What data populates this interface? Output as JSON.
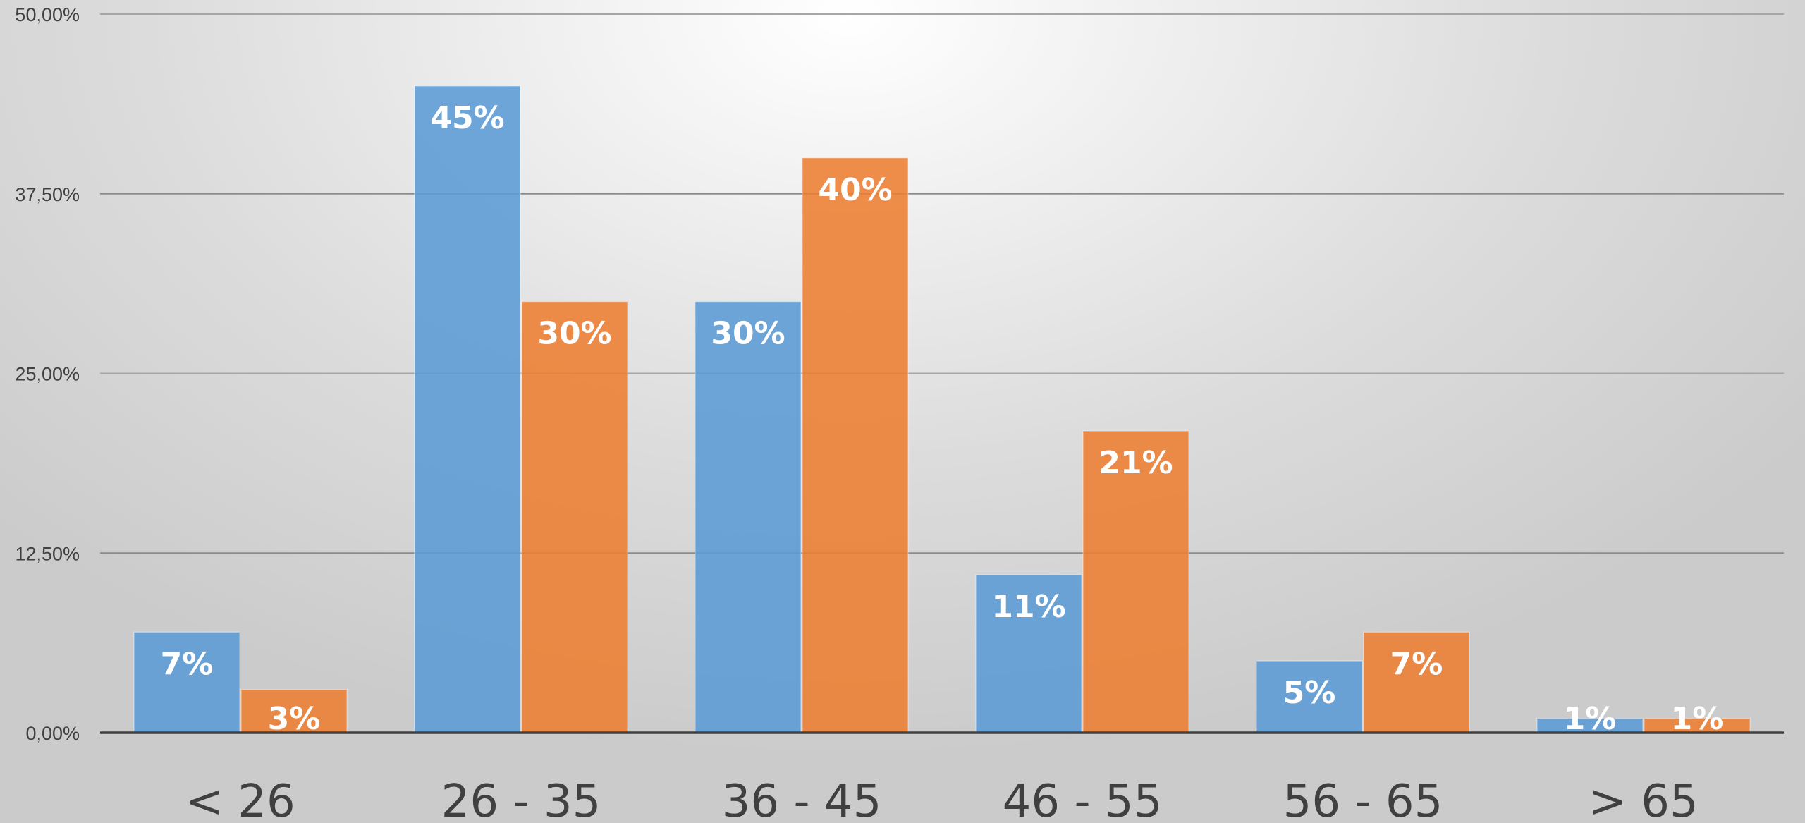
{
  "chart_data": {
    "type": "bar",
    "title": "",
    "xlabel": "",
    "ylabel": "",
    "categories": [
      "< 26",
      "26 - 35",
      "36  - 45",
      "46 - 55",
      "56 - 65",
      "> 65"
    ],
    "series": [
      {
        "color": "#5B9BD5",
        "values": [
          7,
          45,
          30,
          11,
          5,
          1
        ],
        "labels": [
          "7%",
          "45%",
          "30%",
          "11%",
          "5%",
          "1%"
        ]
      },
      {
        "color": "#ED7D31",
        "values": [
          3,
          30,
          40,
          21,
          7,
          1
        ],
        "labels": [
          "3%",
          "30%",
          "40%",
          "21%",
          "7%",
          "1%"
        ]
      }
    ],
    "ylim": [
      0,
      50
    ],
    "yticks": [
      0,
      12.5,
      25,
      37.5,
      50
    ],
    "ytick_labels": [
      "0,00%",
      "12,50%",
      "25,00%",
      "37,50%",
      "50,00%"
    ],
    "grid": true,
    "legend": "none"
  }
}
